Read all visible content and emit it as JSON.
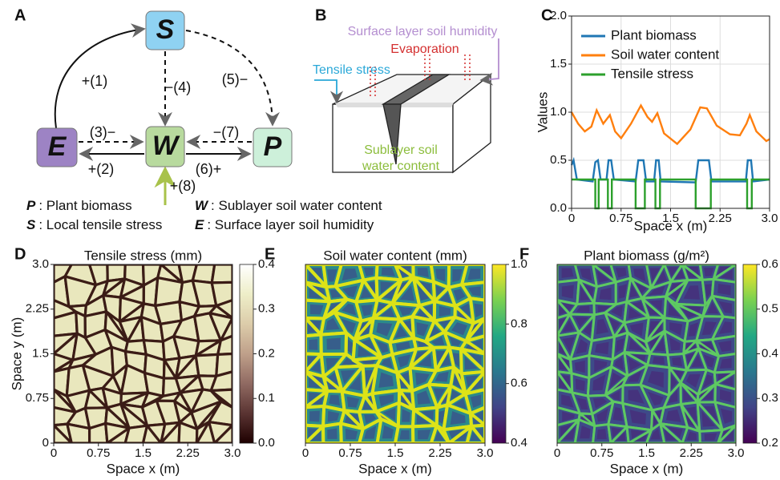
{
  "panel_labels": [
    "A",
    "B",
    "C",
    "D",
    "E",
    "F"
  ],
  "diagram_a": {
    "nodes": [
      {
        "id": "S",
        "color": "#8fd2f2"
      },
      {
        "id": "W",
        "color": "#b8da9e"
      },
      {
        "id": "E",
        "color": "#9d83c4"
      },
      {
        "id": "P",
        "color": "#cdf0da"
      }
    ],
    "edge_labels": [
      "+(1)",
      "+(2)",
      "(3)−",
      "−(4)",
      "(5)−",
      "(6)+",
      "−(7)",
      "+(8)"
    ],
    "legend": [
      {
        "symbol": "P",
        "text": ": Plant biomass"
      },
      {
        "symbol": "W",
        "text": ": Sublayer soil water content"
      },
      {
        "symbol": "S",
        "text": ": Local tensile stress"
      },
      {
        "symbol": "E",
        "text": ": Surface layer soil humidity"
      }
    ]
  },
  "diagram_b": {
    "surface_label": "Surface layer soil humidity",
    "evaporation_label": "Evaporation",
    "tensile_label": "Tensile stress",
    "sublayer_label": [
      "Sublayer soil",
      "water content"
    ]
  },
  "chart_data": [
    {
      "type": "line",
      "xlabel": "Space x (m)",
      "ylabel": "Values",
      "xlim": [
        0,
        3.0
      ],
      "ylim": [
        0,
        2.0
      ],
      "xticks": [
        0,
        0.75,
        1.5,
        2.25,
        {
          "value": 3.0,
          "label": "3.0"
        }
      ],
      "yticks": [
        {
          "value": 0,
          "label": "0.0"
        },
        0.5,
        {
          "value": 1.0,
          "label": "1.0"
        },
        1.5,
        {
          "value": 2.0,
          "label": "2.0"
        }
      ],
      "grid": true,
      "series": [
        {
          "name": "Plant biomass",
          "color": "#1f77b4",
          "x": [
            0,
            0.03,
            0.08,
            0.32,
            0.36,
            0.4,
            0.44,
            0.53,
            0.56,
            0.6,
            0.64,
            0.97,
            1.01,
            1.09,
            1.13,
            1.25,
            1.28,
            1.32,
            1.35,
            1.88,
            1.92,
            2.08,
            2.12,
            2.64,
            2.67,
            2.72,
            2.75,
            3.0
          ],
          "values": [
            0.45,
            0.5,
            0.3,
            0.28,
            0.48,
            0.5,
            0.3,
            0.3,
            0.5,
            0.5,
            0.3,
            0.28,
            0.5,
            0.5,
            0.28,
            0.28,
            0.5,
            0.5,
            0.28,
            0.27,
            0.5,
            0.5,
            0.28,
            0.28,
            0.5,
            0.5,
            0.28,
            0.3
          ]
        },
        {
          "name": "Soil water content",
          "color": "#ff7f0e",
          "x": [
            0,
            0.1,
            0.2,
            0.3,
            0.38,
            0.48,
            0.58,
            0.66,
            0.75,
            0.9,
            1.05,
            1.15,
            1.22,
            1.3,
            1.4,
            1.6,
            1.8,
            1.95,
            2.05,
            2.2,
            2.4,
            2.55,
            2.65,
            2.7,
            2.8,
            2.95,
            3.0
          ],
          "values": [
            1.0,
            0.88,
            0.8,
            0.85,
            1.02,
            0.88,
            0.97,
            0.8,
            0.73,
            0.88,
            1.07,
            0.95,
            0.9,
            0.99,
            0.78,
            0.67,
            0.82,
            1.05,
            1.04,
            0.86,
            0.77,
            0.76,
            0.88,
            0.97,
            0.8,
            0.7,
            0.72
          ]
        },
        {
          "name": "Tensile stress",
          "color": "#2ca02c",
          "x": [
            0,
            0.36,
            0.36,
            0.41,
            0.41,
            0.55,
            0.55,
            0.61,
            0.61,
            0.97,
            0.97,
            1.11,
            1.11,
            1.27,
            1.27,
            1.34,
            1.34,
            1.88,
            1.88,
            2.11,
            2.11,
            2.66,
            2.66,
            2.73,
            2.73,
            3.0
          ],
          "values": [
            0.3,
            0.3,
            0,
            0,
            0.3,
            0.3,
            0,
            0,
            0.3,
            0.3,
            0,
            0,
            0.3,
            0.3,
            0,
            0,
            0.3,
            0.3,
            0,
            0,
            0.3,
            0.3,
            0,
            0,
            0.3,
            0.3
          ]
        }
      ]
    },
    {
      "type": "heatmap",
      "title": "Tensile stress (mm)",
      "xlabel": "Space x (m)",
      "ylabel": "Space y (m)",
      "xlim": [
        0,
        3.0
      ],
      "ylim": [
        0,
        3.0
      ],
      "xticks": [
        0,
        0.75,
        1.5,
        2.25,
        {
          "value": 3.0,
          "label": "3.0"
        }
      ],
      "yticks": [
        0,
        0.75,
        1.5,
        2.25,
        {
          "value": 3.0,
          "label": "3.0"
        }
      ],
      "clim": [
        0,
        0.4
      ],
      "cticks": [
        {
          "value": 0,
          "label": "0.0"
        },
        0.1,
        0.2,
        0.3,
        0.4
      ],
      "colormap": "pink"
    },
    {
      "type": "heatmap",
      "title": "Soil water content (mm)",
      "xlabel": "Space x (m)",
      "xlim": [
        0,
        3.0
      ],
      "ylim": [
        0,
        3.0
      ],
      "xticks": [
        0,
        0.75,
        1.5,
        2.25,
        {
          "value": 3.0,
          "label": "3.0"
        }
      ],
      "clim": [
        0.4,
        1.0
      ],
      "cticks": [
        0.4,
        0.6,
        0.8,
        {
          "value": 1.0,
          "label": "1.0"
        }
      ],
      "colormap": "viridis"
    },
    {
      "type": "heatmap",
      "title": "Plant biomass (g/m²)",
      "xlabel": "Space x (m)",
      "xlim": [
        0,
        3.0
      ],
      "ylim": [
        0,
        3.0
      ],
      "xticks": [
        0,
        0.75,
        1.5,
        2.25,
        {
          "value": 3.0,
          "label": "3.0"
        }
      ],
      "clim": [
        0.2,
        0.6
      ],
      "cticks": [
        0.2,
        0.3,
        0.4,
        0.5,
        0.6
      ],
      "colormap": "viridis"
    }
  ]
}
